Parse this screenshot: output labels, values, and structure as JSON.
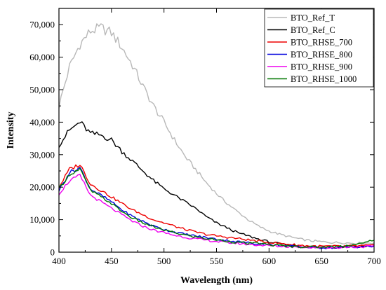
{
  "chart_data": {
    "type": "line",
    "title": "",
    "xlabel": "Wavelength (nm)",
    "ylabel": "Intensity",
    "xlim": [
      400,
      700
    ],
    "ylim": [
      0,
      75000
    ],
    "x_ticks": [
      "400",
      "450",
      "500",
      "550",
      "600",
      "650",
      "700"
    ],
    "y_ticks": [
      "0",
      "10,000",
      "20,000",
      "30,000",
      "40,000",
      "50,000",
      "60,000",
      "70,000"
    ],
    "grid": false,
    "legend_position": "top-right",
    "x": [
      400,
      410,
      420,
      430,
      440,
      450,
      460,
      470,
      480,
      490,
      500,
      510,
      520,
      530,
      540,
      550,
      560,
      570,
      580,
      590,
      600,
      610,
      620,
      630,
      640,
      650,
      660,
      670,
      680,
      690,
      700
    ],
    "series": [
      {
        "name": "BTO_Ref_T",
        "color": "#b8b8b8",
        "values": [
          45000,
          57000,
          64000,
          68000,
          69000,
          67500,
          63000,
          57500,
          51000,
          45000,
          40000,
          34500,
          29500,
          25500,
          21500,
          18000,
          15000,
          12500,
          10000,
          8000,
          6500,
          5500,
          4700,
          4000,
          3500,
          3200,
          3000,
          2900,
          2800,
          2800,
          2900
        ]
      },
      {
        "name": "BTO_Ref_C",
        "color": "#000000",
        "values": [
          33000,
          37500,
          40000,
          36500,
          36000,
          34500,
          31000,
          28000,
          25000,
          22000,
          19500,
          17500,
          15500,
          13500,
          11000,
          9000,
          7500,
          6000,
          5000,
          4000,
          3200,
          2500,
          2100,
          1800,
          1600,
          1500,
          1500,
          1600,
          1700,
          1800,
          2000
        ]
      },
      {
        "name": "BTO_RHSE_700",
        "color": "#ee0000",
        "values": [
          20000,
          25500,
          27000,
          21000,
          19000,
          17000,
          15000,
          13000,
          11500,
          10000,
          9000,
          8000,
          7000,
          6200,
          5500,
          5000,
          4600,
          4200,
          3800,
          3400,
          3000,
          2700,
          2400,
          2100,
          1900,
          1800,
          1800,
          1800,
          1900,
          2000,
          2100
        ]
      },
      {
        "name": "BTO_RHSE_800",
        "color": "#0000dd",
        "values": [
          19000,
          24500,
          26000,
          19500,
          17500,
          15500,
          13000,
          11000,
          9500,
          8000,
          7000,
          6200,
          5500,
          5000,
          4500,
          4000,
          3600,
          3200,
          2900,
          2600,
          2300,
          2000,
          1800,
          1600,
          1500,
          1400,
          1400,
          1500,
          1600,
          1700,
          1800
        ]
      },
      {
        "name": "BTO_RHSE_900",
        "color": "#ee00ee",
        "values": [
          18000,
          22000,
          23500,
          17500,
          15500,
          13500,
          11500,
          9500,
          8000,
          6800,
          6000,
          5200,
          4600,
          4100,
          3700,
          3300,
          3000,
          2700,
          2400,
          2200,
          2000,
          1800,
          1700,
          1600,
          1500,
          1400,
          1400,
          1500,
          1600,
          1700,
          1800
        ]
      },
      {
        "name": "BTO_RHSE_1000",
        "color": "#007700",
        "values": [
          19500,
          24000,
          25500,
          19000,
          17000,
          15000,
          12500,
          10500,
          9000,
          7800,
          6800,
          6000,
          5300,
          4700,
          4200,
          3800,
          3400,
          3000,
          2700,
          2800,
          2300,
          2000,
          1800,
          1700,
          1600,
          1600,
          1700,
          1900,
          2300,
          2700,
          4000
        ]
      }
    ]
  }
}
